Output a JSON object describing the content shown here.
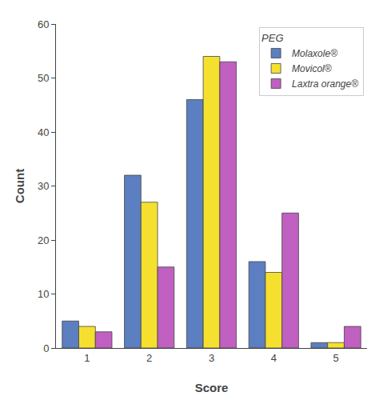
{
  "chart_data": {
    "type": "bar",
    "x_label": "Score",
    "y_label": "Count",
    "legend_title": "PEG",
    "categories": [
      "1",
      "2",
      "3",
      "4",
      "5"
    ],
    "series": [
      {
        "name": "Molaxole®",
        "color": "#5b7fc0",
        "values": [
          5,
          32,
          46,
          16,
          1
        ]
      },
      {
        "name": "Movicol®",
        "color": "#f5e030",
        "values": [
          4,
          27,
          54,
          14,
          1
        ]
      },
      {
        "name": "Laxtra orange®",
        "color": "#c060c0",
        "values": [
          3,
          15,
          53,
          25,
          4
        ]
      }
    ],
    "ylim": [
      0,
      60
    ],
    "yticks": [
      0,
      10,
      20,
      30,
      40,
      50,
      60
    ],
    "grid": false,
    "legend": "upper right"
  }
}
